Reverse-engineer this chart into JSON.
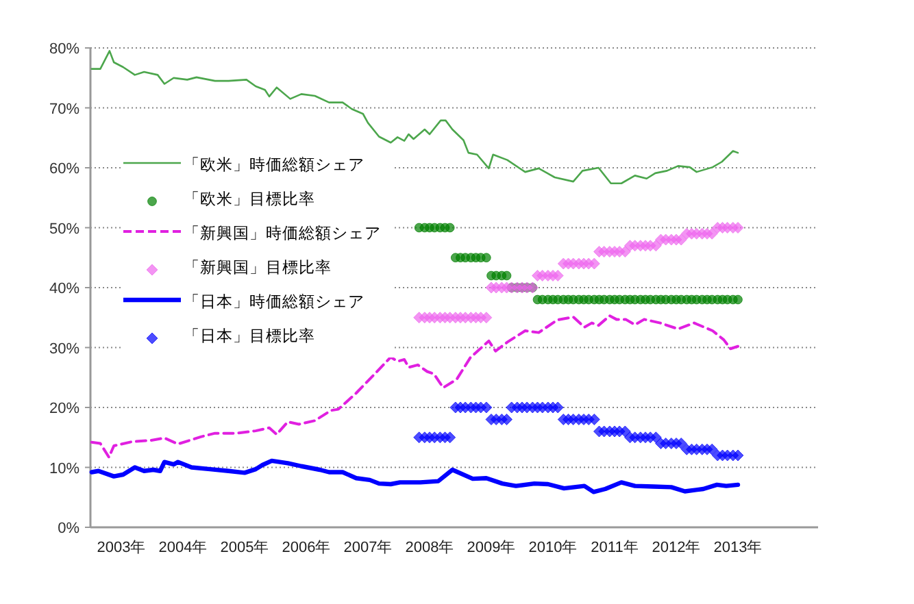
{
  "chart_data": {
    "type": "line",
    "xlim": [
      2003,
      2014.8
    ],
    "ylim": [
      0,
      80
    ],
    "xticks": [
      {
        "value": 2003.5,
        "label": "2003年"
      },
      {
        "value": 2004.5,
        "label": "2004年"
      },
      {
        "value": 2005.5,
        "label": "2005年"
      },
      {
        "value": 2006.5,
        "label": "2006年"
      },
      {
        "value": 2007.5,
        "label": "2007年"
      },
      {
        "value": 2008.5,
        "label": "2008年"
      },
      {
        "value": 2009.5,
        "label": "2009年"
      },
      {
        "value": 2010.5,
        "label": "2010年"
      },
      {
        "value": 2011.5,
        "label": "2011年"
      },
      {
        "value": 2012.5,
        "label": "2012年"
      },
      {
        "value": 2013.5,
        "label": "2013年"
      }
    ],
    "yticks": [
      {
        "value": 0,
        "label": "0%"
      },
      {
        "value": 10,
        "label": "10%"
      },
      {
        "value": 20,
        "label": "20%"
      },
      {
        "value": 30,
        "label": "30%"
      },
      {
        "value": 40,
        "label": "40%"
      },
      {
        "value": 50,
        "label": "50%"
      },
      {
        "value": 60,
        "label": "60%"
      },
      {
        "value": 70,
        "label": "70%"
      },
      {
        "value": 80,
        "label": "80%"
      }
    ],
    "grid": "y",
    "legend": "left",
    "x": [
      2008.33,
      2008.42,
      2008.5,
      2008.58,
      2008.67,
      2008.75,
      2008.83,
      2008.92,
      2009.0,
      2009.08,
      2009.17,
      2009.25,
      2009.33,
      2009.42,
      2009.5,
      2009.58,
      2009.67,
      2009.75,
      2009.83,
      2009.92,
      2010.0,
      2010.08,
      2010.17,
      2010.25,
      2010.33,
      2010.42,
      2010.5,
      2010.58,
      2010.67,
      2010.75,
      2010.83,
      2010.92,
      2011.0,
      2011.08,
      2011.17,
      2011.25,
      2011.33,
      2011.42,
      2011.5,
      2011.58,
      2011.67,
      2011.75,
      2011.83,
      2011.92,
      2012.0,
      2012.08,
      2012.17,
      2012.25,
      2012.33,
      2012.42,
      2012.5,
      2012.58,
      2012.67,
      2012.75,
      2012.83,
      2012.92,
      2013.0,
      2013.08,
      2013.17,
      2013.25,
      2013.33,
      2013.42,
      2013.5
    ],
    "series": [
      {
        "name": "「欧米」時価総額シェア",
        "type": "line",
        "color": "#4ca64c",
        "line_style": "solid",
        "x": [
          2003.02,
          2003.16,
          2003.31,
          2003.38,
          2003.53,
          2003.72,
          2003.87,
          2004.09,
          2004.2,
          2004.35,
          2004.57,
          2004.72,
          2005.02,
          2005.24,
          2005.53,
          2005.68,
          2005.83,
          2005.9,
          2006.02,
          2006.24,
          2006.42,
          2006.64,
          2006.87,
          2007.09,
          2007.24,
          2007.42,
          2007.5,
          2007.68,
          2007.87,
          2007.98,
          2008.09,
          2008.16,
          2008.24,
          2008.42,
          2008.5,
          2008.68,
          2008.76,
          2008.87,
          2009.05,
          2009.13,
          2009.27,
          2009.46,
          2009.53,
          2009.76,
          2010.05,
          2010.27,
          2010.53,
          2010.83,
          2010.98,
          2011.24,
          2011.44,
          2011.61,
          2011.83,
          2012.02,
          2012.16,
          2012.35,
          2012.53,
          2012.72,
          2012.83,
          2013.09,
          2013.24,
          2013.42,
          2013.5
        ],
        "values": [
          76.5,
          76.5,
          79.5,
          77.6,
          76.8,
          75.5,
          76.0,
          75.5,
          74.0,
          75.0,
          74.7,
          75.1,
          74.5,
          74.5,
          74.7,
          73.6,
          73.0,
          71.9,
          73.4,
          71.5,
          72.3,
          72.0,
          70.9,
          70.9,
          69.8,
          69.0,
          67.5,
          65.2,
          64.2,
          65.1,
          64.5,
          65.6,
          64.8,
          66.4,
          65.6,
          67.9,
          67.9,
          66.4,
          64.6,
          62.5,
          62.2,
          59.9,
          62.2,
          61.3,
          59.3,
          59.9,
          58.4,
          57.7,
          59.5,
          60.0,
          57.4,
          57.4,
          58.7,
          58.2,
          59.1,
          59.5,
          60.3,
          60.1,
          59.3,
          60.1,
          61.0,
          62.8,
          62.5
        ]
      },
      {
        "name": "「欧米」目標比率",
        "type": "scatter",
        "color": "#008000",
        "marker": "circle",
        "values": [
          50,
          50,
          50,
          50,
          50,
          50,
          50,
          45,
          45,
          45,
          45,
          45,
          45,
          45,
          42,
          42,
          42,
          42,
          40,
          40,
          40,
          40,
          40,
          38,
          38,
          38,
          38,
          38,
          38,
          38,
          38,
          38,
          38,
          38,
          38,
          38,
          38,
          38,
          38,
          38,
          38,
          38,
          38,
          38,
          38,
          38,
          38,
          38,
          38,
          38,
          38,
          38,
          38,
          38,
          38,
          38,
          38,
          38,
          38,
          38,
          38,
          38,
          38
        ]
      },
      {
        "name": "「新興国」時価総額シェア",
        "type": "line",
        "color": "#e020e0",
        "line_style": "dashed",
        "x": [
          2003.02,
          2003.16,
          2003.3,
          2003.38,
          2003.68,
          2003.98,
          2004.2,
          2004.42,
          2004.79,
          2005.02,
          2005.38,
          2005.68,
          2005.9,
          2006.02,
          2006.2,
          2006.38,
          2006.64,
          2006.9,
          2007.02,
          2007.31,
          2007.61,
          2007.87,
          2007.98,
          2008.09,
          2008.16,
          2008.31,
          2008.46,
          2008.57,
          2008.72,
          2008.94,
          2009.16,
          2009.46,
          2009.57,
          2009.76,
          2010.05,
          2010.27,
          2010.57,
          2010.83,
          2011.01,
          2011.13,
          2011.24,
          2011.42,
          2011.53,
          2011.68,
          2011.83,
          2011.98,
          2012.24,
          2012.53,
          2012.79,
          2013.09,
          2013.27,
          2013.38,
          2013.5
        ],
        "values": [
          14.2,
          14.0,
          11.7,
          13.6,
          14.3,
          14.5,
          14.9,
          13.9,
          15.1,
          15.7,
          15.7,
          16.1,
          16.6,
          15.5,
          17.6,
          17.2,
          17.8,
          19.5,
          19.7,
          22.4,
          25.6,
          28.4,
          27.7,
          28.0,
          26.7,
          27.1,
          26.0,
          25.6,
          23.3,
          24.7,
          28.3,
          31.1,
          29.4,
          30.9,
          32.8,
          32.5,
          34.6,
          35.1,
          33.4,
          34.1,
          33.7,
          35.3,
          34.7,
          34.7,
          33.8,
          34.7,
          34.1,
          33.1,
          34.1,
          32.8,
          31.3,
          29.8,
          30.2
        ]
      },
      {
        "name": "「新興国」目標比率",
        "type": "scatter",
        "color": "#ee66ee",
        "marker": "diamond",
        "values": [
          35,
          35,
          35,
          35,
          35,
          35,
          35,
          35,
          35,
          35,
          35,
          35,
          35,
          35,
          40,
          40,
          40,
          40,
          40,
          40,
          40,
          40,
          40,
          42,
          42,
          42,
          42,
          42,
          44,
          44,
          44,
          44,
          44,
          44,
          44,
          46,
          46,
          46,
          46,
          46,
          46,
          47,
          47,
          47,
          47,
          47,
          47,
          48,
          48,
          48,
          48,
          48,
          49,
          49,
          49,
          49,
          49,
          49,
          50,
          50,
          50,
          50,
          50
        ]
      },
      {
        "name": "「日本」時価総額シェア",
        "type": "line",
        "color": "#0000ff",
        "line_style": "solid",
        "x": [
          2003.02,
          2003.13,
          2003.38,
          2003.53,
          2003.72,
          2003.87,
          2004.02,
          2004.13,
          2004.2,
          2004.35,
          2004.42,
          2004.64,
          2004.94,
          2005.24,
          2005.5,
          2005.68,
          2005.79,
          2005.94,
          2006.2,
          2006.42,
          2006.72,
          2006.87,
          2007.09,
          2007.31,
          2007.53,
          2007.68,
          2007.87,
          2008.02,
          2008.35,
          2008.64,
          2008.87,
          2009.2,
          2009.42,
          2009.68,
          2009.9,
          2010.2,
          2010.42,
          2010.68,
          2011.01,
          2011.16,
          2011.35,
          2011.61,
          2011.83,
          2012.13,
          2012.42,
          2012.64,
          2012.94,
          2013.16,
          2013.31,
          2013.5
        ],
        "values": [
          9.2,
          9.4,
          8.5,
          8.8,
          10.0,
          9.4,
          9.6,
          9.4,
          10.9,
          10.5,
          10.9,
          10.0,
          9.7,
          9.4,
          9.1,
          9.7,
          10.4,
          11.1,
          10.7,
          10.2,
          9.6,
          9.2,
          9.2,
          8.2,
          7.9,
          7.3,
          7.2,
          7.5,
          7.5,
          7.7,
          9.6,
          8.1,
          8.2,
          7.3,
          6.9,
          7.3,
          7.2,
          6.5,
          6.9,
          5.9,
          6.4,
          7.5,
          6.9,
          6.8,
          6.7,
          6.0,
          6.4,
          7.1,
          6.9,
          7.1
        ]
      },
      {
        "name": "「日本」目標比率",
        "type": "scatter",
        "color": "#0000ff",
        "marker": "diamond",
        "values": [
          15,
          15,
          15,
          15,
          15,
          15,
          15,
          20,
          20,
          20,
          20,
          20,
          20,
          20,
          18,
          18,
          18,
          18,
          20,
          20,
          20,
          20,
          20,
          20,
          20,
          20,
          20,
          20,
          18,
          18,
          18,
          18,
          18,
          18,
          18,
          16,
          16,
          16,
          16,
          16,
          16,
          15,
          15,
          15,
          15,
          15,
          15,
          14,
          14,
          14,
          14,
          14,
          13,
          13,
          13,
          13,
          13,
          13,
          12,
          12,
          12,
          12,
          12
        ]
      }
    ]
  }
}
